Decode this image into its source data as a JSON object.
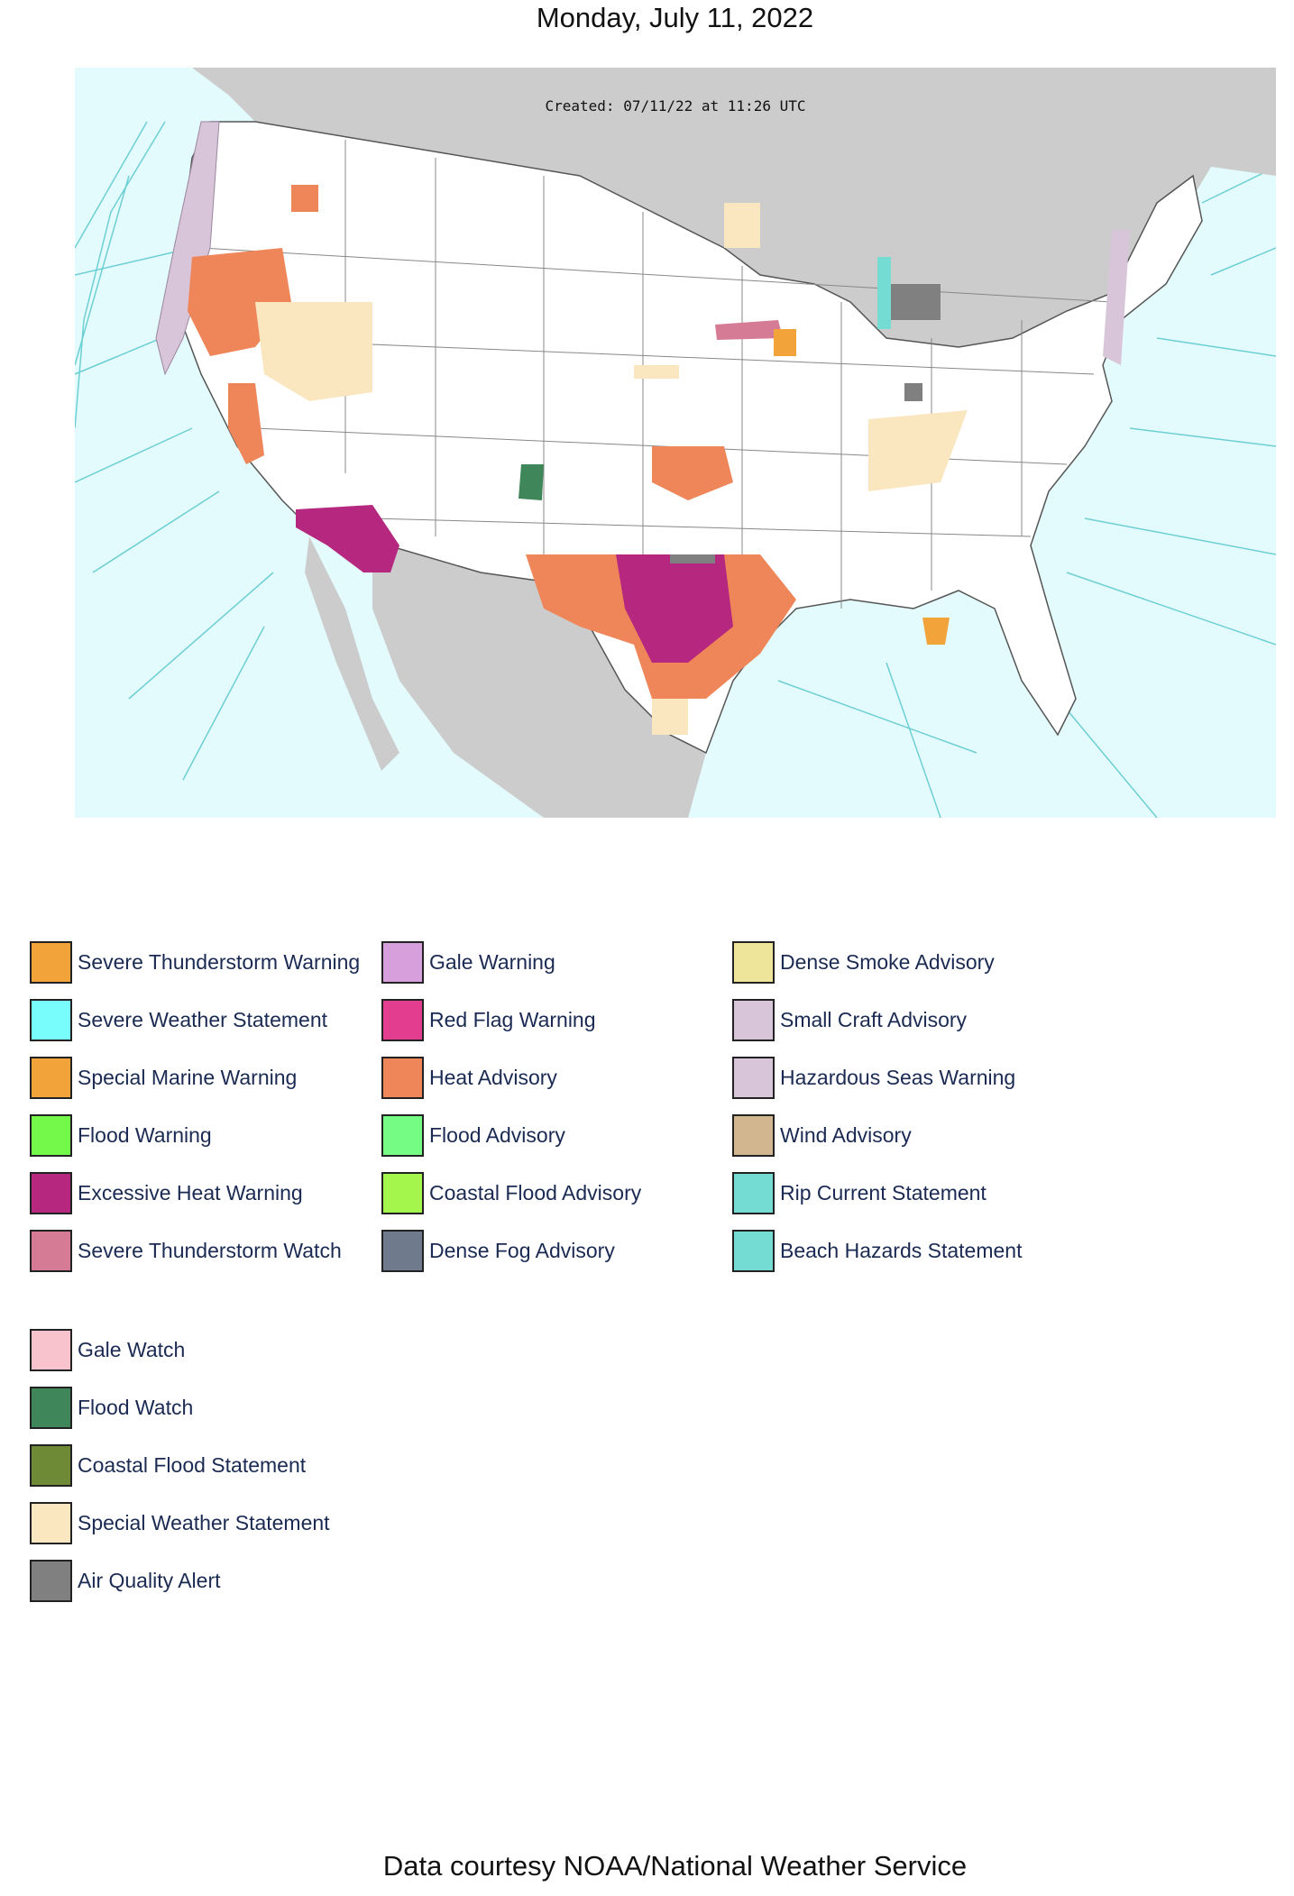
{
  "header": {
    "date": "Monday, July 11, 2022"
  },
  "map": {
    "created_stamp": "Created: 07/11/22 at 11:26 UTC",
    "colors": {
      "ocean": "#e4fbfd",
      "land_other": "#cccccc",
      "us_land": "#ffffff",
      "marine_zone_lines": "#6ccfd4"
    }
  },
  "legend": {
    "items": [
      {
        "label": "Severe Thunderstorm Warning",
        "color": "#f2a33a"
      },
      {
        "label": "Severe Weather Statement",
        "color": "#78fcfc"
      },
      {
        "label": "Special Marine Warning",
        "color": "#f2a33a"
      },
      {
        "label": "Flood Warning",
        "color": "#74f84a"
      },
      {
        "label": "Excessive Heat Warning",
        "color": "#b6287f"
      },
      {
        "label": "Severe Thunderstorm Watch",
        "color": "#d67b96"
      },
      {
        "label": "Gale Warning",
        "color": "#d7a0dd"
      },
      {
        "label": "Red Flag Warning",
        "color": "#e23d8e"
      },
      {
        "label": "Heat Advisory",
        "color": "#ef865a"
      },
      {
        "label": "Flood Advisory",
        "color": "#74fc84"
      },
      {
        "label": "Coastal Flood Advisory",
        "color": "#a4f64d"
      },
      {
        "label": "Dense Fog Advisory",
        "color": "#6f7a8c"
      },
      {
        "label": "Dense Smoke Advisory",
        "color": "#efe59a"
      },
      {
        "label": "Small Craft Advisory",
        "color": "#d8c5da"
      },
      {
        "label": "Hazardous Seas Warning",
        "color": "#d8c5da"
      },
      {
        "label": "Wind Advisory",
        "color": "#d1b68f"
      },
      {
        "label": "Rip Current Statement",
        "color": "#74dcd2"
      },
      {
        "label": "Beach Hazards Statement",
        "color": "#74dcd2"
      },
      {
        "label": "Gale Watch",
        "color": "#f8c3cd"
      },
      {
        "label": "Flood Watch",
        "color": "#3f875a"
      },
      {
        "label": "Coastal Flood Statement",
        "color": "#6f8a36"
      },
      {
        "label": "Special Weather Statement",
        "color": "#fae6bf"
      },
      {
        "label": "Air Quality Alert",
        "color": "#808080"
      }
    ]
  },
  "footer": {
    "credit": "Data courtesy NOAA/National Weather Service"
  }
}
